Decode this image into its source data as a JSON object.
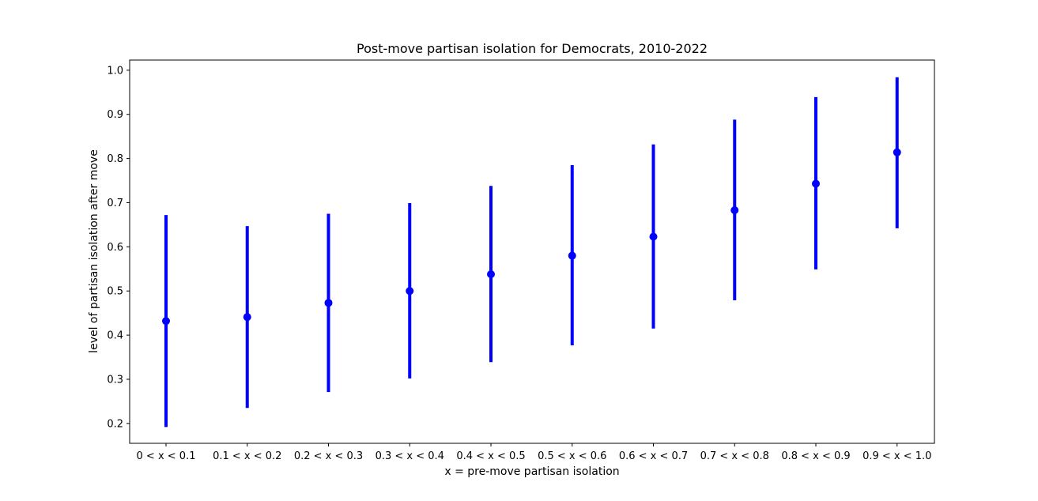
{
  "chart_data": {
    "type": "errorbar",
    "title": "Post-move partisan isolation for Democrats, 2010-2022",
    "xlabel": "x = pre-move partisan isolation",
    "ylabel": "level of partisan isolation after move",
    "categories": [
      "0 < x < 0.1",
      "0.1 < x < 0.2",
      "0.2 < x < 0.3",
      "0.3 < x < 0.4",
      "0.4 < x < 0.5",
      "0.5 < x < 0.6",
      "0.6 < x < 0.7",
      "0.7 < x < 0.8",
      "0.8 < x < 0.9",
      "0.9 < x < 1.0"
    ],
    "values": [
      0.432,
      0.441,
      0.473,
      0.5,
      0.538,
      0.58,
      0.623,
      0.683,
      0.743,
      0.814
    ],
    "lower": [
      0.192,
      0.235,
      0.271,
      0.302,
      0.339,
      0.377,
      0.415,
      0.479,
      0.549,
      0.642
    ],
    "upper": [
      0.672,
      0.647,
      0.675,
      0.699,
      0.738,
      0.785,
      0.832,
      0.888,
      0.939,
      0.984
    ],
    "ylim": [
      0.155,
      1.023
    ],
    "yticks": [
      "0.2",
      "0.3",
      "0.4",
      "0.5",
      "0.6",
      "0.7",
      "0.8",
      "0.9",
      "1.0"
    ],
    "grid": false,
    "color": "#0000ff"
  }
}
